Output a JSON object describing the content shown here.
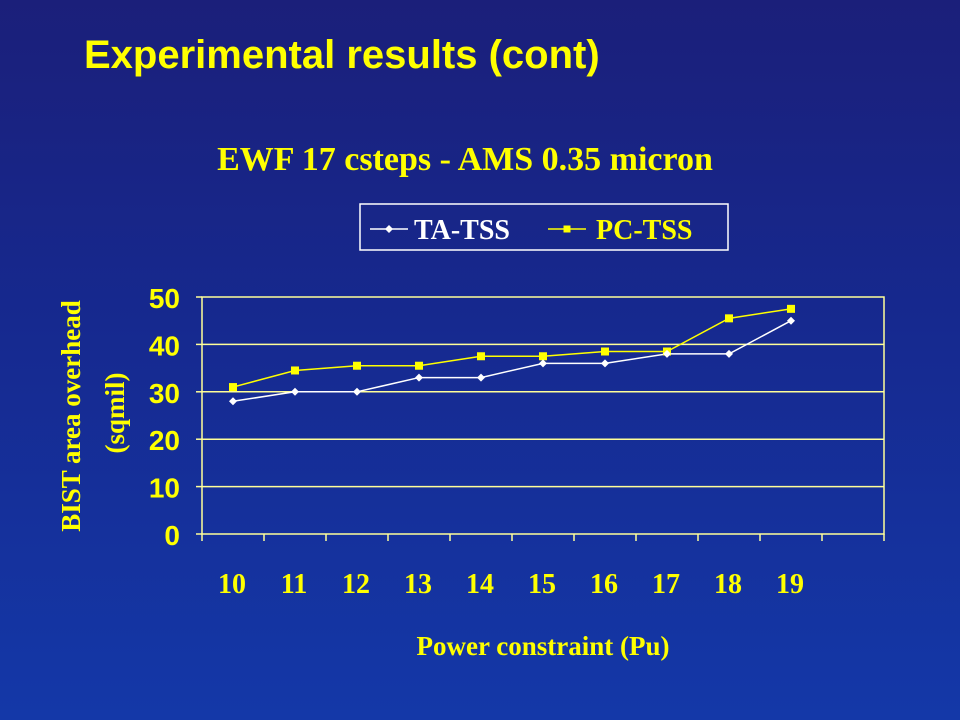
{
  "slide": {
    "title": "Experimental results (cont)"
  },
  "colors": {
    "background": "#1a2a94",
    "text": "#ffff00",
    "axis": "#ffff99",
    "series_ta_tss": "#ffffff",
    "series_pc_tss": "#ffff00"
  },
  "chart_data": {
    "type": "line",
    "title": "EWF 17 csteps - AMS 0.35 micron",
    "xlabel": "Power constraint (Pu)",
    "ylabel": "BIST area overhead (sqmil)",
    "ylabel_lines": [
      "BIST area overhead",
      "(sqmil)"
    ],
    "categories": [
      "10",
      "11",
      "12",
      "13",
      "14",
      "15",
      "16",
      "17",
      "18",
      "19"
    ],
    "yticks": [
      "0",
      "10",
      "20",
      "30",
      "40",
      "50"
    ],
    "ylim": [
      0,
      50
    ],
    "grid": "horizontal",
    "legend": "top",
    "series": [
      {
        "name": "TA-TSS",
        "marker": "diamond",
        "values": [
          28,
          30,
          30,
          33,
          33,
          36,
          36,
          38,
          38,
          45
        ]
      },
      {
        "name": "PC-TSS",
        "marker": "square",
        "values": [
          31,
          34.5,
          35.5,
          35.5,
          37.5,
          37.5,
          38.5,
          38.5,
          45.5,
          47.5
        ]
      }
    ]
  }
}
